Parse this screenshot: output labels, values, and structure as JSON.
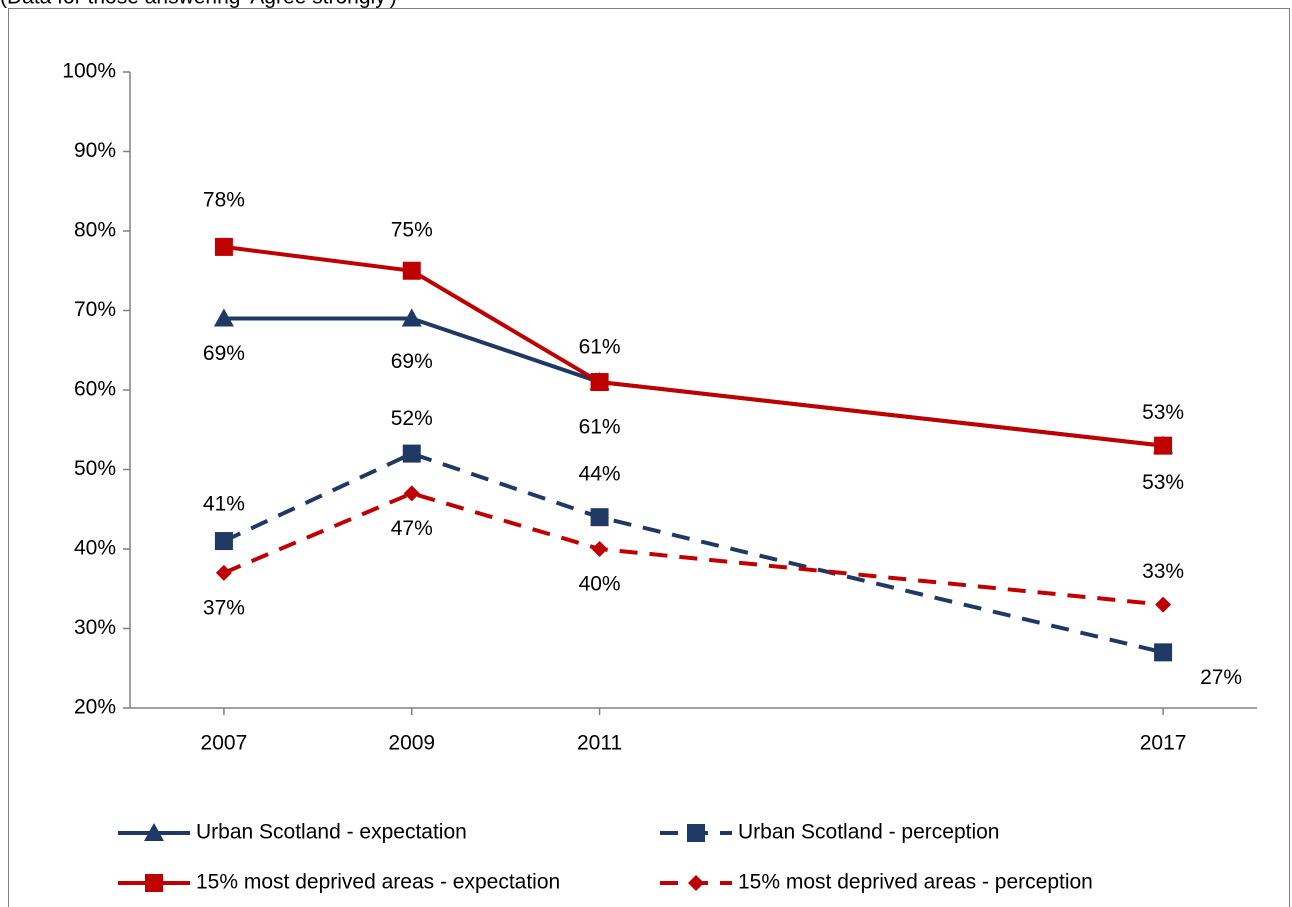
{
  "chart_data": {
    "type": "line",
    "subtitle": "(Data for those answering 'Agree strongly')",
    "x": [
      2007,
      2009,
      2011,
      2017
    ],
    "xlim": [
      2006,
      2018
    ],
    "xticks": [
      2007,
      2009,
      2011,
      2017
    ],
    "ylim": [
      20,
      100
    ],
    "yticks": [
      {
        "value": 20,
        "label": "20%"
      },
      {
        "value": 30,
        "label": "30%"
      },
      {
        "value": 40,
        "label": "40%"
      },
      {
        "value": 50,
        "label": "50%"
      },
      {
        "value": 60,
        "label": "60%"
      },
      {
        "value": 70,
        "label": "70%"
      },
      {
        "value": 80,
        "label": "80%"
      },
      {
        "value": 90,
        "label": "90%"
      },
      {
        "value": 100,
        "label": "100%"
      }
    ],
    "grid": false,
    "legend": "bottom",
    "series": [
      {
        "name": "Urban Scotland - expectation",
        "color": "#1f3864",
        "dashed": false,
        "marker": "triangle",
        "values": [
          69,
          69,
          61,
          53
        ],
        "value_labels": [
          "69%",
          "69%",
          "61%",
          "53%"
        ]
      },
      {
        "name": "Urban Scotland - perception",
        "color": "#1f3864",
        "dashed": true,
        "marker": "square",
        "values": [
          41,
          52,
          44,
          27
        ],
        "value_labels": [
          "41%",
          "52%",
          "44%",
          "27%"
        ]
      },
      {
        "name": "15% most deprived areas - expectation",
        "color": "#c00000",
        "dashed": false,
        "marker": "square",
        "values": [
          78,
          75,
          61,
          53
        ],
        "value_labels": [
          "78%",
          "75%",
          "61%",
          "53%"
        ]
      },
      {
        "name": "15% most deprived areas - perception",
        "color": "#c00000",
        "dashed": true,
        "marker": "diamond",
        "values": [
          37,
          47,
          40,
          33
        ],
        "value_labels": [
          "37%",
          "47%",
          "40%",
          "33%"
        ]
      }
    ]
  }
}
